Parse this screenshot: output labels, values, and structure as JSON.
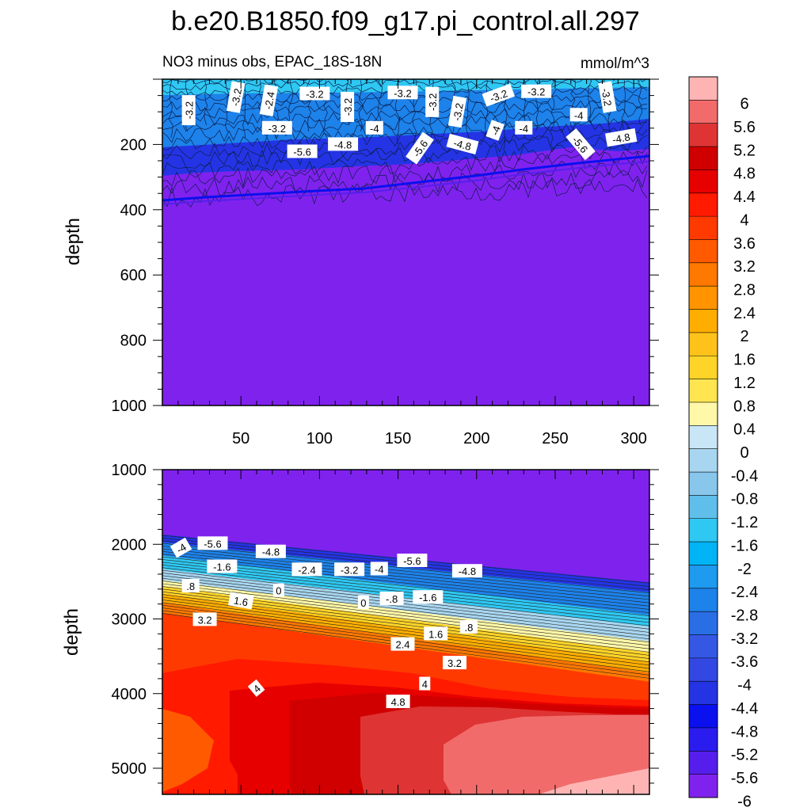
{
  "chart_data": {
    "type": "contour",
    "title": "b.e20.B1850.f09_g17.pi_control.all.297",
    "subtitle_left": "NO3 minus obs, EPAC_18S-18N",
    "units": "mmol/m^3",
    "ylabel": "depth",
    "xlim": [
      0,
      310
    ],
    "x_ticks": [
      "50",
      "100",
      "150",
      "200",
      "250",
      "300"
    ],
    "x_tick_values": [
      50,
      100,
      150,
      200,
      250,
      300
    ],
    "panels": [
      {
        "name": "upper",
        "ylim": [
          0,
          1000
        ],
        "y_ticks": [
          "200",
          "400",
          "600",
          "800",
          "1000"
        ],
        "y_tick_values": [
          200,
          400,
          600,
          800,
          1000
        ],
        "labels": [
          {
            "text": "-3.2",
            "x": 17,
            "y": 95,
            "rot": -90
          },
          {
            "text": "-3.2",
            "x": 47,
            "y": 55,
            "rot": -80
          },
          {
            "text": "-2.4",
            "x": 68,
            "y": 65,
            "rot": -80
          },
          {
            "text": "-3.2",
            "x": 97,
            "y": 45,
            "rot": 0
          },
          {
            "text": "-3.2",
            "x": 118,
            "y": 85,
            "rot": -90
          },
          {
            "text": "-3.2",
            "x": 153,
            "y": 42,
            "rot": 0
          },
          {
            "text": "-3.2",
            "x": 172,
            "y": 70,
            "rot": -90
          },
          {
            "text": "-3.2",
            "x": 188,
            "y": 100,
            "rot": -80
          },
          {
            "text": "-3.2",
            "x": 214,
            "y": 50,
            "rot": -20
          },
          {
            "text": "-3.2",
            "x": 238,
            "y": 38,
            "rot": 0
          },
          {
            "text": "-3.2",
            "x": 283,
            "y": 55,
            "rot": 80
          },
          {
            "text": "-3.2",
            "x": 73,
            "y": 150,
            "rot": 0
          },
          {
            "text": "-4",
            "x": 135,
            "y": 150,
            "rot": 0
          },
          {
            "text": "-4",
            "x": 212,
            "y": 157,
            "rot": -70
          },
          {
            "text": "-4",
            "x": 230,
            "y": 150,
            "rot": 0
          },
          {
            "text": "-4",
            "x": 265,
            "y": 110,
            "rot": 0
          },
          {
            "text": "-4.8",
            "x": 115,
            "y": 200,
            "rot": 0
          },
          {
            "text": "-4.8",
            "x": 191,
            "y": 200,
            "rot": 15
          },
          {
            "text": "-4.8",
            "x": 292,
            "y": 180,
            "rot": -10
          },
          {
            "text": "-5.6",
            "x": 89,
            "y": 222,
            "rot": 0
          },
          {
            "text": "-5.6",
            "x": 164,
            "y": 212,
            "rot": -55
          },
          {
            "text": "-5.6",
            "x": 266,
            "y": 200,
            "rot": 50
          }
        ]
      },
      {
        "name": "lower",
        "ylim": [
          1000,
          5350
        ],
        "y_ticks": [
          "1000",
          "2000",
          "3000",
          "4000",
          "5000"
        ],
        "y_tick_values": [
          1000,
          2000,
          3000,
          4000,
          5000
        ],
        "labels": [
          {
            "text": "-4",
            "x": 12,
            "y": 2050,
            "rot": -30
          },
          {
            "text": "-5.6",
            "x": 32,
            "y": 1990,
            "rot": 0
          },
          {
            "text": "-4.8",
            "x": 69,
            "y": 2100,
            "rot": 0
          },
          {
            "text": "-1.6",
            "x": 38,
            "y": 2300,
            "rot": 0
          },
          {
            "text": "-2.4",
            "x": 92,
            "y": 2340,
            "rot": 0
          },
          {
            "text": "-3.2",
            "x": 119,
            "y": 2340,
            "rot": 0
          },
          {
            "text": "-4",
            "x": 138,
            "y": 2330,
            "rot": 0
          },
          {
            "text": "-5.6",
            "x": 159,
            "y": 2220,
            "rot": 0
          },
          {
            "text": "-4.8",
            "x": 194,
            "y": 2360,
            "rot": 0
          },
          {
            "text": ".8",
            "x": 18,
            "y": 2560,
            "rot": 0
          },
          {
            "text": "0",
            "x": 74,
            "y": 2620,
            "rot": 0
          },
          {
            "text": "1.6",
            "x": 50,
            "y": 2760,
            "rot": 10
          },
          {
            "text": "0",
            "x": 128,
            "y": 2780,
            "rot": 0
          },
          {
            "text": "-.8",
            "x": 146,
            "y": 2730,
            "rot": 0
          },
          {
            "text": "-1.6",
            "x": 169,
            "y": 2710,
            "rot": 0
          },
          {
            "text": "3.2",
            "x": 27,
            "y": 3010,
            "rot": 0
          },
          {
            "text": ".8",
            "x": 195,
            "y": 3110,
            "rot": 0
          },
          {
            "text": "1.6",
            "x": 174,
            "y": 3200,
            "rot": 0
          },
          {
            "text": "2.4",
            "x": 153,
            "y": 3340,
            "rot": 0
          },
          {
            "text": "3.2",
            "x": 186,
            "y": 3590,
            "rot": 0
          },
          {
            "text": "4",
            "x": 60,
            "y": 3930,
            "rot": -40
          },
          {
            "text": "4",
            "x": 167,
            "y": 3870,
            "rot": 0
          },
          {
            "text": "4.8",
            "x": 150,
            "y": 4110,
            "rot": 0
          }
        ]
      }
    ],
    "levels": [
      -6,
      -5.6,
      -5.2,
      -4.8,
      -4.4,
      -4,
      -3.6,
      -3.2,
      -2.8,
      -2.4,
      -2,
      -1.6,
      -1.2,
      -0.8,
      -0.4,
      0,
      0.4,
      0.8,
      1.2,
      1.6,
      2,
      2.4,
      2.8,
      3.2,
      3.6,
      4,
      4.4,
      4.8,
      5.2,
      5.6,
      6
    ],
    "colorbar": {
      "labels": [
        "6",
        "5.6",
        "5.2",
        "4.8",
        "4.4",
        "4",
        "3.6",
        "3.2",
        "2.8",
        "2.4",
        "2",
        "1.6",
        "1.2",
        "0.8",
        "0.4",
        "0",
        "-0.4",
        "-0.8",
        "-1.2",
        "-1.6",
        "-2",
        "-2.4",
        "-2.8",
        "-3.2",
        "-3.6",
        "-4",
        "-4.4",
        "-4.8",
        "-5.2",
        "-5.6",
        "-6"
      ],
      "colors": [
        "#ffb4b4",
        "#f26b6b",
        "#de3434",
        "#d00000",
        "#e60000",
        "#ff1a00",
        "#ff3a00",
        "#ff5a00",
        "#ff7800",
        "#ff9400",
        "#ffae00",
        "#ffc21a",
        "#ffd428",
        "#ffe650",
        "#fff8a8",
        "#c8e6f6",
        "#a8d6f0",
        "#88c6ec",
        "#5fbfea",
        "#2ec8f2",
        "#00b4f6",
        "#1e9aee",
        "#1d82ea",
        "#2a6ee6",
        "#3558e4",
        "#3348e2",
        "#2434e4",
        "#0a10ee",
        "#2a1cee",
        "#561eec",
        "#8022ee"
      ]
    }
  }
}
